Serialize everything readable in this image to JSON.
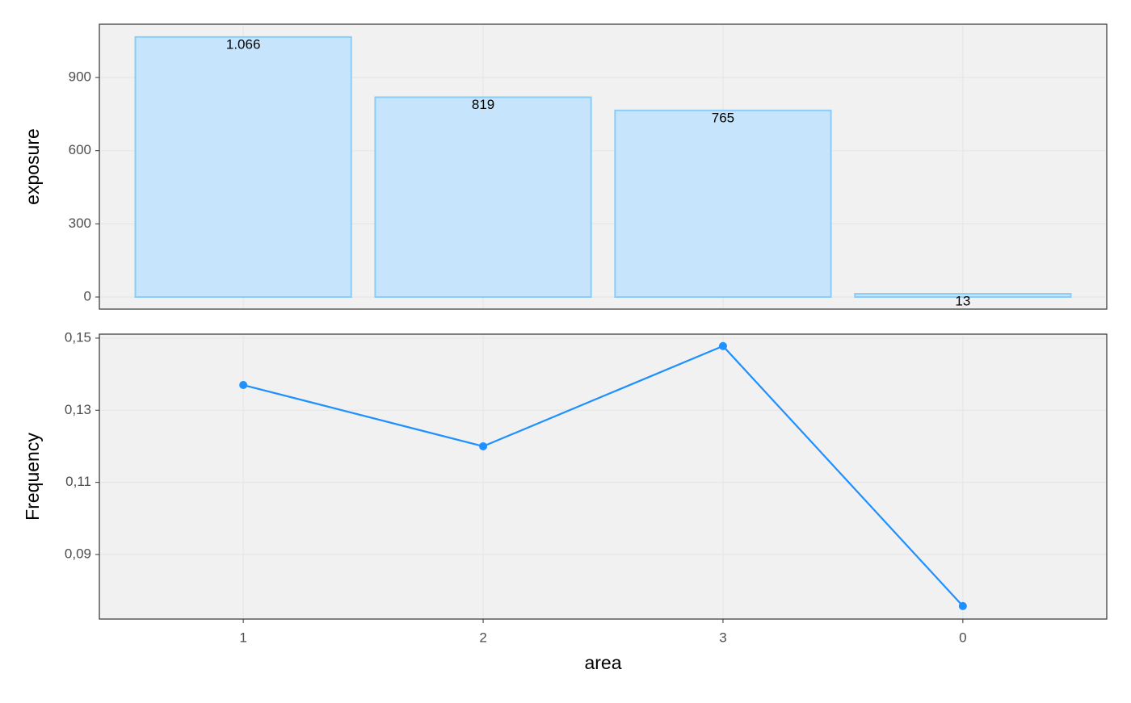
{
  "chart_data": [
    {
      "type": "bar",
      "y_label": "exposure",
      "values": [
        1066,
        819,
        765,
        13
      ],
      "value_labels": [
        "1.066",
        "819",
        "765",
        "13"
      ],
      "color": "#c6e5fc",
      "edge_color": "#8acdf9",
      "ylim": [
        -49.6,
        1118.4
      ],
      "yticks": [
        0,
        300,
        600,
        900
      ],
      "grid": true
    },
    {
      "type": "line",
      "y_label": "Frequency",
      "x_label": "area",
      "categories": [
        "1",
        "2",
        "3",
        "0"
      ],
      "values": [
        0.137,
        0.12,
        0.1478,
        0.0757
      ],
      "color": "#1e90ff",
      "ylim": [
        0.0721,
        0.1511
      ],
      "yticks": [
        {
          "value": 0.09,
          "label": "0,09"
        },
        {
          "value": 0.11,
          "label": "0,11"
        },
        {
          "value": 0.13,
          "label": "0,13"
        },
        {
          "value": 0.15,
          "label": "0,15"
        }
      ],
      "grid": true
    }
  ]
}
